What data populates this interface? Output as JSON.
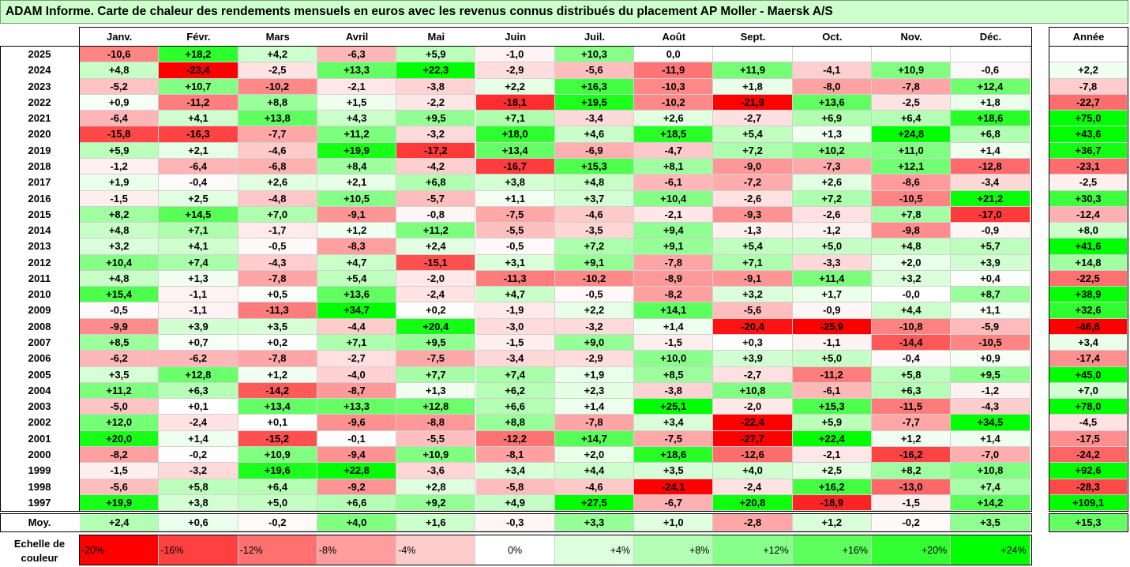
{
  "title": "ADAM Informe. Carte de chaleur des rendements mensuels en euros avec les revenus connus distribués du placement AP Moller - Maersk A/S",
  "chart_data": {
    "type": "heatmap",
    "months": [
      "Janv.",
      "Févr.",
      "Mars",
      "Avril",
      "Mai",
      "Juin",
      "Juil.",
      "Août",
      "Sept.",
      "Oct.",
      "Nov.",
      "Déc."
    ],
    "annual_header": "Année",
    "rows": [
      {
        "year": "2025",
        "values": [
          "-10,6",
          "+18,2",
          "+4,2",
          "-6,3",
          "+5,9",
          "-1,0",
          "+10,3",
          "0,0",
          "",
          "",
          "",
          ""
        ],
        "annual": ""
      },
      {
        "year": "2024",
        "values": [
          "+4,8",
          "-23,4",
          "-2,5",
          "+13,3",
          "+22,3",
          "-2,9",
          "-5,6",
          "-11,9",
          "+11,9",
          "-4,1",
          "+10,9",
          "-0,6"
        ],
        "annual": "+2,2"
      },
      {
        "year": "2023",
        "values": [
          "-5,2",
          "+10,7",
          "-10,2",
          "-2,1",
          "-3,8",
          "+2,2",
          "+16,3",
          "-10,3",
          "+1,8",
          "-8,0",
          "-7,8",
          "+12,4"
        ],
        "annual": "-7,8"
      },
      {
        "year": "2022",
        "values": [
          "+0,9",
          "-11,2",
          "+8,8",
          "+1,5",
          "-2,2",
          "-18,1",
          "+19,5",
          "-10,2",
          "-21,9",
          "+13,6",
          "-2,5",
          "+1,8"
        ],
        "annual": "-22,7"
      },
      {
        "year": "2021",
        "values": [
          "-6,4",
          "+4,1",
          "+13,8",
          "+4,3",
          "+9,5",
          "+7,1",
          "-3,4",
          "+2,6",
          "-2,7",
          "+6,9",
          "+6,4",
          "+18,6"
        ],
        "annual": "+75,0"
      },
      {
        "year": "2020",
        "values": [
          "-15,8",
          "-16,3",
          "-7,7",
          "+11,2",
          "-3,2",
          "+18,0",
          "+4,6",
          "+18,5",
          "+5,4",
          "+1,3",
          "+24,8",
          "+6,8"
        ],
        "annual": "+43,6"
      },
      {
        "year": "2019",
        "values": [
          "+5,9",
          "+2,1",
          "-4,6",
          "+19,9",
          "-17,2",
          "+13,4",
          "-6,9",
          "-4,7",
          "+7,2",
          "+10,2",
          "+11,0",
          "+1,4"
        ],
        "annual": "+36,7"
      },
      {
        "year": "2018",
        "values": [
          "-1,2",
          "-6,4",
          "-6,8",
          "+8,4",
          "-4,2",
          "-16,7",
          "+15,3",
          "+8,1",
          "-9,0",
          "-7,3",
          "+12,1",
          "-12,8"
        ],
        "annual": "-23,1"
      },
      {
        "year": "2017",
        "values": [
          "+1,9",
          "-0,4",
          "+2,6",
          "+2,1",
          "+6,8",
          "+3,8",
          "+4,8",
          "-6,1",
          "-7,2",
          "+2,6",
          "-8,6",
          "-3,4"
        ],
        "annual": "-2,5"
      },
      {
        "year": "2016",
        "values": [
          "-1,5",
          "+2,5",
          "-4,8",
          "+10,5",
          "-5,7",
          "+1,1",
          "+3,7",
          "+10,4",
          "-2,6",
          "+7,2",
          "-10,5",
          "+21,2"
        ],
        "annual": "+30,3"
      },
      {
        "year": "2015",
        "values": [
          "+8,2",
          "+14,5",
          "+7,0",
          "-9,1",
          "-0,8",
          "-7,5",
          "-4,6",
          "-2,1",
          "-9,3",
          "-2,6",
          "+7,8",
          "-17,0"
        ],
        "annual": "-12,4"
      },
      {
        "year": "2014",
        "values": [
          "+4,8",
          "+7,1",
          "-1,7",
          "+1,2",
          "+11,2",
          "-5,5",
          "-3,5",
          "+9,4",
          "-1,3",
          "-1,2",
          "-9,8",
          "-0,9"
        ],
        "annual": "+8,0"
      },
      {
        "year": "2013",
        "values": [
          "+3,2",
          "+4,1",
          "-0,5",
          "-8,3",
          "+2,4",
          "-0,5",
          "+7,2",
          "+9,1",
          "+5,4",
          "+5,0",
          "+4,8",
          "+5,7"
        ],
        "annual": "+41,6"
      },
      {
        "year": "2012",
        "values": [
          "+10,4",
          "+7,4",
          "-4,3",
          "+4,7",
          "-15,1",
          "+3,1",
          "+9,1",
          "-7,8",
          "+7,1",
          "-3,3",
          "+2,0",
          "+3,9"
        ],
        "annual": "+14,8"
      },
      {
        "year": "2011",
        "values": [
          "+4,8",
          "+1,3",
          "-7,8",
          "+5,4",
          "-2,0",
          "-11,3",
          "-10,2",
          "-8,9",
          "-9,1",
          "+11,4",
          "+3,2",
          "+0,4"
        ],
        "annual": "-22,5"
      },
      {
        "year": "2010",
        "values": [
          "+15,4",
          "-1,1",
          "+0,5",
          "+13,6",
          "-2,4",
          "+4,7",
          "-0,5",
          "-8,2",
          "+3,2",
          "+1,7",
          "-0,0",
          "+8,7"
        ],
        "annual": "+38,9"
      },
      {
        "year": "2009",
        "values": [
          "-0,5",
          "-1,1",
          "-11,3",
          "+34,7",
          "+0,2",
          "-1,9",
          "+2,2",
          "+14,1",
          "-5,6",
          "-0,9",
          "+4,4",
          "+1,1"
        ],
        "annual": "+32,6"
      },
      {
        "year": "2008",
        "values": [
          "-9,9",
          "+3,9",
          "+3,5",
          "-4,4",
          "+20,4",
          "-3,0",
          "-3,2",
          "+1,4",
          "-20,4",
          "-25,9",
          "-10,8",
          "-5,9"
        ],
        "annual": "-46,8"
      },
      {
        "year": "2007",
        "values": [
          "+8,5",
          "+0,7",
          "+0,2",
          "+7,1",
          "+9,5",
          "-1,5",
          "+9,0",
          "-1,5",
          "+0,3",
          "-1,1",
          "-14,4",
          "-10,5"
        ],
        "annual": "+3,4"
      },
      {
        "year": "2006",
        "values": [
          "-6,2",
          "-6,2",
          "-7,8",
          "-2,7",
          "-7,5",
          "-3,4",
          "-2,9",
          "+10,0",
          "+3,9",
          "+5,0",
          "-0,4",
          "+0,9"
        ],
        "annual": "-17,4"
      },
      {
        "year": "2005",
        "values": [
          "+3,5",
          "+12,8",
          "+1,2",
          "-4,0",
          "+7,7",
          "+7,4",
          "+1,9",
          "+8,5",
          "-2,7",
          "-11,2",
          "+5,8",
          "+9,5"
        ],
        "annual": "+45,0"
      },
      {
        "year": "2004",
        "values": [
          "+11,2",
          "+6,3",
          "-14,2",
          "-8,7",
          "+1,3",
          "+6,2",
          "+2,3",
          "-3,8",
          "+10,8",
          "-6,1",
          "+6,3",
          "-1,2"
        ],
        "annual": "+7,0"
      },
      {
        "year": "2003",
        "values": [
          "-5,0",
          "+0,1",
          "+13,4",
          "+13,3",
          "+12,8",
          "+6,6",
          "+1,4",
          "+25,1",
          "-2,0",
          "+15,3",
          "-11,5",
          "-4,3"
        ],
        "annual": "+78,0"
      },
      {
        "year": "2002",
        "values": [
          "+12,0",
          "-2,4",
          "+0,1",
          "-9,6",
          "-8,8",
          "+8,8",
          "-7,8",
          "+3,4",
          "-22,4",
          "+5,9",
          "-7,7",
          "+34,5"
        ],
        "annual": "-4,5"
      },
      {
        "year": "2001",
        "values": [
          "+20,0",
          "+1,4",
          "-15,2",
          "-0,1",
          "-5,5",
          "-12,2",
          "+14,7",
          "-7,5",
          "-27,7",
          "+22,4",
          "+1,2",
          "+1,4"
        ],
        "annual": "-17,5"
      },
      {
        "year": "2000",
        "values": [
          "-8,2",
          "-0,2",
          "+10,9",
          "-9,4",
          "+10,9",
          "-8,1",
          "+2,0",
          "+18,6",
          "-12,6",
          "-2,1",
          "-16,2",
          "-7,0"
        ],
        "annual": "-24,2"
      },
      {
        "year": "1999",
        "values": [
          "-1,5",
          "-3,2",
          "+19,6",
          "+22,8",
          "-3,6",
          "+3,4",
          "+4,4",
          "+3,5",
          "+4,0",
          "+2,5",
          "+8,2",
          "+10,8"
        ],
        "annual": "+92,6"
      },
      {
        "year": "1998",
        "values": [
          "-5,6",
          "+5,8",
          "+6,4",
          "-9,2",
          "+2,8",
          "-5,8",
          "-4,6",
          "-24,1",
          "-2,4",
          "+16,2",
          "-13,0",
          "+7,4"
        ],
        "annual": "-28,3"
      },
      {
        "year": "1997",
        "values": [
          "+19,9",
          "+3,8",
          "+5,0",
          "+6,6",
          "+9,2",
          "+4,9",
          "+27,5",
          "-6,7",
          "+20,8",
          "-18,9",
          "-1,5",
          "+14,2"
        ],
        "annual": "+109,1"
      }
    ],
    "average": {
      "label": "Moy.",
      "values": [
        "+2,4",
        "+0,6",
        "-0,2",
        "+4,0",
        "+1,6",
        "-0,3",
        "+3,3",
        "+1,0",
        "-2,8",
        "+1,2",
        "-0,2",
        "+3,5"
      ],
      "annual": "+15,3"
    },
    "scale": {
      "label": "Echelle de couleur",
      "steps": [
        "-20%",
        "-16%",
        "-12%",
        "-8%",
        "-4%",
        "0%",
        "+4%",
        "+8%",
        "+12%",
        "+16%",
        "+20%",
        "+24%"
      ],
      "colors": [
        "#ff0000",
        "#ff4040",
        "#ff7070",
        "#ff9c9c",
        "#ffcccc",
        "#ffffff",
        "#ddffdd",
        "#b3ffb3",
        "#88ff88",
        "#5cff5c",
        "#33ff33",
        "#00ff00"
      ]
    }
  }
}
